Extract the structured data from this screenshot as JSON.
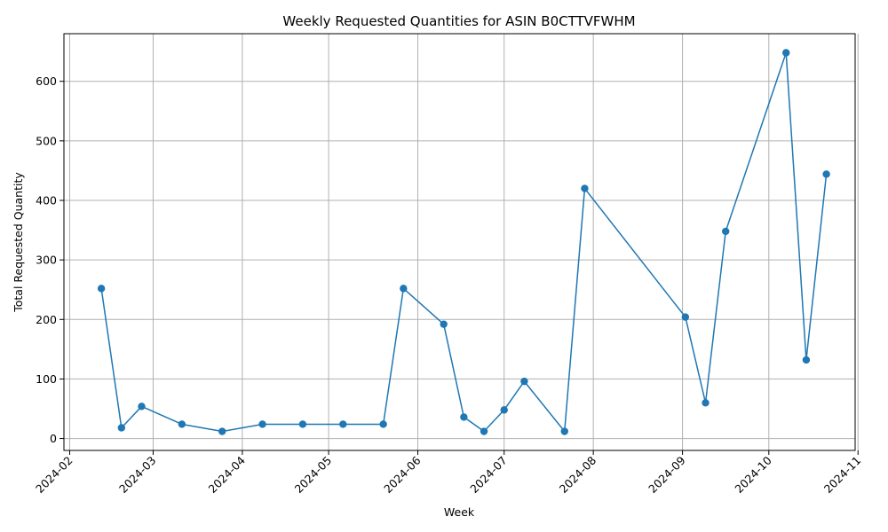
{
  "chart_data": {
    "type": "line",
    "title": "Weekly Requested Quantities for ASIN B0CTTVFWHM",
    "xlabel": "Week",
    "ylabel": "Total Requested Quantity",
    "grid": true,
    "color": "#1f77b4",
    "xlim": [
      "2024-01-30",
      "2024-10-31"
    ],
    "ylim": [
      -20,
      680
    ],
    "x_ticks": [
      "2024-02",
      "2024-03",
      "2024-04",
      "2024-05",
      "2024-06",
      "2024-07",
      "2024-08",
      "2024-09",
      "2024-10",
      "2024-11"
    ],
    "x_tick_dates": [
      "2024-02-01",
      "2024-03-01",
      "2024-04-01",
      "2024-05-01",
      "2024-06-01",
      "2024-07-01",
      "2024-08-01",
      "2024-09-01",
      "2024-10-01",
      "2024-11-01"
    ],
    "y_ticks": [
      0,
      100,
      200,
      300,
      400,
      500,
      600
    ],
    "series": [
      {
        "name": "Total Requested Quantity",
        "x": [
          "2024-02-12",
          "2024-02-19",
          "2024-02-26",
          "2024-03-11",
          "2024-03-25",
          "2024-04-08",
          "2024-04-22",
          "2024-05-06",
          "2024-05-20",
          "2024-05-27",
          "2024-06-10",
          "2024-06-17",
          "2024-06-24",
          "2024-07-01",
          "2024-07-08",
          "2024-07-22",
          "2024-07-29",
          "2024-09-02",
          "2024-09-09",
          "2024-09-16",
          "2024-10-07",
          "2024-10-14",
          "2024-10-21"
        ],
        "values": [
          252,
          18,
          54,
          24,
          12,
          24,
          24,
          24,
          24,
          252,
          192,
          36,
          12,
          48,
          96,
          12,
          420,
          204,
          60,
          348,
          648,
          132,
          444
        ]
      }
    ]
  }
}
